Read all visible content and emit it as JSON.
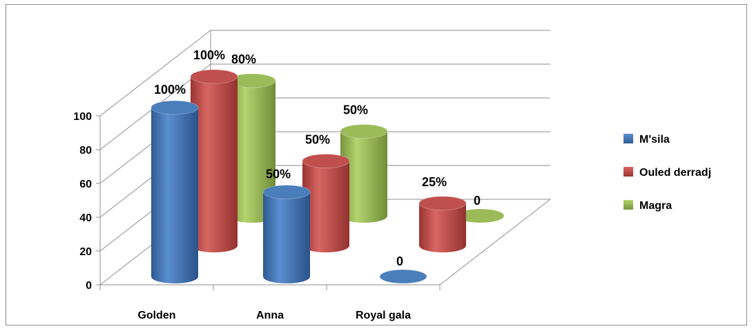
{
  "chart_data": {
    "type": "bar",
    "style": "3d-cylinder",
    "categories": [
      "Golden",
      "Anna",
      "Royal gala"
    ],
    "series": [
      {
        "name": "M'sila",
        "values": [
          100,
          50,
          0
        ],
        "labels": [
          "100%",
          "50%",
          "0"
        ],
        "color": "#4a7ebb"
      },
      {
        "name": "Ouled derradj",
        "values": [
          100,
          50,
          25
        ],
        "labels": [
          "100%",
          "50%",
          "25%"
        ],
        "color": "#c0504d"
      },
      {
        "name": "Magra",
        "values": [
          80,
          50,
          0
        ],
        "labels": [
          "80%",
          "50%",
          "0"
        ],
        "color": "#9bbb59"
      }
    ],
    "yticks": [
      "0",
      "20",
      "40",
      "60",
      "80",
      "100"
    ],
    "ylim": [
      0,
      100
    ],
    "grid": true,
    "legend_position": "right"
  }
}
